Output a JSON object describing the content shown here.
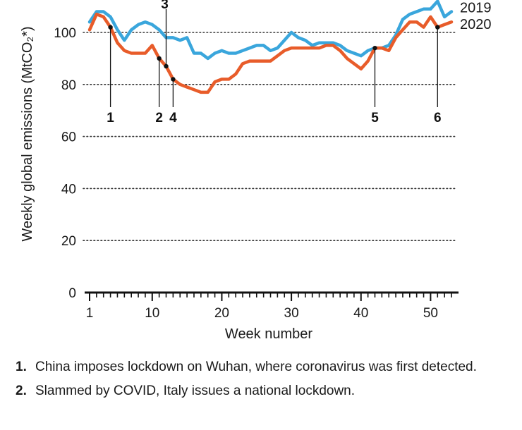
{
  "chart_data": {
    "type": "line",
    "title": "",
    "xlabel": "Week number",
    "ylabel": "Weekly global emissions (MtCO₂*)",
    "xlim": [
      1,
      53
    ],
    "ylim": [
      0,
      110
    ],
    "x_ticks": [
      1,
      10,
      20,
      30,
      40,
      50
    ],
    "y_ticks": [
      0,
      20,
      40,
      60,
      80,
      100
    ],
    "grid": "dotted horizontal",
    "legend": "right-end labels",
    "series": [
      {
        "name": "2019",
        "color": "#3aa6dc",
        "x": [
          1,
          2,
          3,
          4,
          5,
          6,
          7,
          8,
          9,
          10,
          11,
          12,
          13,
          14,
          15,
          16,
          17,
          18,
          19,
          20,
          21,
          22,
          23,
          24,
          25,
          26,
          27,
          28,
          29,
          30,
          31,
          32,
          33,
          34,
          35,
          36,
          37,
          38,
          39,
          40,
          41,
          42,
          43,
          44,
          45,
          46,
          47,
          48,
          49,
          50,
          51,
          52,
          53
        ],
        "values": [
          104,
          108,
          108,
          106,
          101,
          97,
          101,
          103,
          104,
          103,
          101,
          98,
          98,
          97,
          98,
          92,
          92,
          90,
          92,
          93,
          92,
          92,
          93,
          94,
          95,
          95,
          93,
          94,
          97,
          100,
          98,
          97,
          95,
          96,
          96,
          96,
          95,
          93,
          92,
          91,
          93,
          94,
          94,
          95,
          99,
          105,
          107,
          108,
          109,
          109,
          112,
          106,
          108
        ]
      },
      {
        "name": "2020",
        "color": "#e85c2a",
        "x": [
          1,
          2,
          3,
          4,
          5,
          6,
          7,
          8,
          9,
          10,
          11,
          12,
          13,
          14,
          15,
          16,
          17,
          18,
          19,
          20,
          21,
          22,
          23,
          24,
          25,
          26,
          27,
          28,
          29,
          30,
          31,
          32,
          33,
          34,
          35,
          36,
          37,
          38,
          39,
          40,
          41,
          42,
          43,
          44,
          45,
          46,
          47,
          48,
          49,
          50,
          51,
          52,
          53
        ],
        "values": [
          101,
          107,
          106,
          102,
          96,
          93,
          92,
          92,
          92,
          95,
          90,
          87,
          82,
          80,
          79,
          78,
          77,
          77,
          81,
          82,
          82,
          84,
          88,
          89,
          89,
          89,
          89,
          91,
          93,
          94,
          94,
          94,
          94,
          94,
          95,
          95,
          93,
          90,
          88,
          86,
          89,
          94,
          94,
          93,
          98,
          101,
          104,
          104,
          102,
          106,
          102,
          103,
          104
        ]
      }
    ],
    "annotations": [
      {
        "label": "1",
        "x": 4,
        "series": "2020"
      },
      {
        "label": "2",
        "x": 11,
        "series": "2020"
      },
      {
        "label": "3",
        "x": 12,
        "series": "2020"
      },
      {
        "label": "4",
        "x": 13,
        "series": "2020"
      },
      {
        "label": "5",
        "x": 42,
        "series": "2020"
      },
      {
        "label": "6",
        "x": 51,
        "series": "2020"
      }
    ]
  },
  "notes": [
    {
      "num": "1.",
      "text": "China imposes lockdown on Wuhan, where coronavirus was first detected."
    },
    {
      "num": "2.",
      "text": "Slammed by COVID, Italy issues a national lockdown."
    }
  ]
}
